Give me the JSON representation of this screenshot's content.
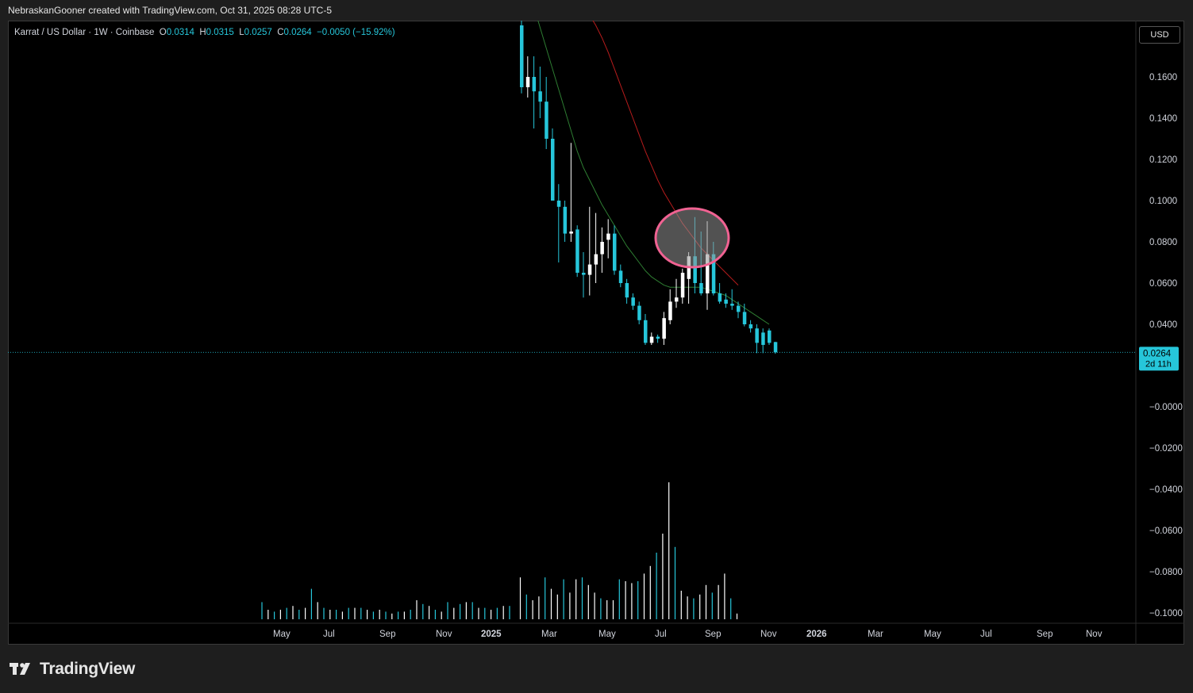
{
  "header": {
    "credit": "NebraskanGooner created with TradingView.com, Oct 31, 2025 08:28 UTC-5"
  },
  "legend": {
    "symbol": "Karrat / US Dollar · 1W · Coinbase",
    "open_label": "O",
    "open_value": "0.0314",
    "high_label": "H",
    "high_value": "0.0315",
    "low_label": "L",
    "low_value": "0.0257",
    "close_label": "C",
    "close_value": "0.0264",
    "change": "−0.0050 (−15.92%)"
  },
  "toolbar": {
    "currency": "USD"
  },
  "price_badge": {
    "value": "0.0264",
    "countdown": "2d 11h"
  },
  "footer": {
    "brand": "TradingView"
  },
  "colors": {
    "up": "#ffffff",
    "down": "#26c6da",
    "ma_fast": "#2e7d32",
    "ma_slow": "#b71c1c",
    "highlight": "#f06292",
    "axis_text": "#d1d4dc",
    "background": "#000000"
  },
  "icons": {
    "brand_logo": "tradingview-logo-icon"
  },
  "chart_data": {
    "type": "candlestick",
    "interval": "1W",
    "last_price": 0.0264,
    "y_ticks": [
      "0.1600",
      "0.1400",
      "0.1200",
      "0.1000",
      "0.0800",
      "0.0600",
      "0.0400",
      "−0.0000",
      "−0.0200",
      "−0.0400",
      "−0.0600",
      "−0.0800",
      "−0.1000"
    ],
    "x_ticks": [
      {
        "label": "May",
        "bold": false
      },
      {
        "label": "Jul",
        "bold": false
      },
      {
        "label": "Sep",
        "bold": false
      },
      {
        "label": "Nov",
        "bold": false
      },
      {
        "label": "2025",
        "bold": true
      },
      {
        "label": "Mar",
        "bold": false
      },
      {
        "label": "May",
        "bold": false
      },
      {
        "label": "Jul",
        "bold": false
      },
      {
        "label": "Sep",
        "bold": false
      },
      {
        "label": "Nov",
        "bold": false
      },
      {
        "label": "2026",
        "bold": true
      },
      {
        "label": "Mar",
        "bold": false
      },
      {
        "label": "May",
        "bold": false
      },
      {
        "label": "Jul",
        "bold": false
      },
      {
        "label": "Sep",
        "bold": false
      },
      {
        "label": "Nov",
        "bold": false
      }
    ],
    "candles": [
      {
        "o": 0.185,
        "h": 0.19,
        "l": 0.152,
        "c": 0.155
      },
      {
        "o": 0.155,
        "h": 0.17,
        "l": 0.15,
        "c": 0.16
      },
      {
        "o": 0.16,
        "h": 0.17,
        "l": 0.135,
        "c": 0.153
      },
      {
        "o": 0.153,
        "h": 0.165,
        "l": 0.14,
        "c": 0.148
      },
      {
        "o": 0.148,
        "h": 0.16,
        "l": 0.125,
        "c": 0.13
      },
      {
        "o": 0.13,
        "h": 0.135,
        "l": 0.1,
        "c": 0.1
      },
      {
        "o": 0.1,
        "h": 0.108,
        "l": 0.07,
        "c": 0.097
      },
      {
        "o": 0.097,
        "h": 0.1,
        "l": 0.08,
        "c": 0.084
      },
      {
        "o": 0.084,
        "h": 0.128,
        "l": 0.08,
        "c": 0.085
      },
      {
        "o": 0.086,
        "h": 0.088,
        "l": 0.063,
        "c": 0.065
      },
      {
        "o": 0.065,
        "h": 0.075,
        "l": 0.053,
        "c": 0.064
      },
      {
        "o": 0.064,
        "h": 0.097,
        "l": 0.054,
        "c": 0.069
      },
      {
        "o": 0.069,
        "h": 0.094,
        "l": 0.06,
        "c": 0.074
      },
      {
        "o": 0.074,
        "h": 0.087,
        "l": 0.065,
        "c": 0.08
      },
      {
        "o": 0.081,
        "h": 0.091,
        "l": 0.072,
        "c": 0.084
      },
      {
        "o": 0.084,
        "h": 0.088,
        "l": 0.064,
        "c": 0.066
      },
      {
        "o": 0.066,
        "h": 0.069,
        "l": 0.058,
        "c": 0.06
      },
      {
        "o": 0.06,
        "h": 0.062,
        "l": 0.05,
        "c": 0.053
      },
      {
        "o": 0.053,
        "h": 0.055,
        "l": 0.047,
        "c": 0.049
      },
      {
        "o": 0.049,
        "h": 0.051,
        "l": 0.04,
        "c": 0.042
      },
      {
        "o": 0.042,
        "h": 0.045,
        "l": 0.03,
        "c": 0.031
      },
      {
        "o": 0.031,
        "h": 0.036,
        "l": 0.03,
        "c": 0.034
      },
      {
        "o": 0.034,
        "h": 0.035,
        "l": 0.031,
        "c": 0.033
      },
      {
        "o": 0.033,
        "h": 0.046,
        "l": 0.03,
        "c": 0.043
      },
      {
        "o": 0.042,
        "h": 0.057,
        "l": 0.04,
        "c": 0.051
      },
      {
        "o": 0.051,
        "h": 0.062,
        "l": 0.048,
        "c": 0.053
      },
      {
        "o": 0.053,
        "h": 0.067,
        "l": 0.05,
        "c": 0.065
      },
      {
        "o": 0.062,
        "h": 0.075,
        "l": 0.05,
        "c": 0.073
      },
      {
        "o": 0.073,
        "h": 0.092,
        "l": 0.055,
        "c": 0.06
      },
      {
        "o": 0.06,
        "h": 0.085,
        "l": 0.054,
        "c": 0.055
      },
      {
        "o": 0.055,
        "h": 0.09,
        "l": 0.047,
        "c": 0.074
      },
      {
        "o": 0.074,
        "h": 0.08,
        "l": 0.054,
        "c": 0.055
      },
      {
        "o": 0.055,
        "h": 0.06,
        "l": 0.05,
        "c": 0.051
      },
      {
        "o": 0.052,
        "h": 0.055,
        "l": 0.048,
        "c": 0.05
      },
      {
        "o": 0.05,
        "h": 0.057,
        "l": 0.047,
        "c": 0.049
      },
      {
        "o": 0.049,
        "h": 0.051,
        "l": 0.043,
        "c": 0.046
      },
      {
        "o": 0.046,
        "h": 0.05,
        "l": 0.039,
        "c": 0.04
      },
      {
        "o": 0.04,
        "h": 0.042,
        "l": 0.036,
        "c": 0.038
      },
      {
        "o": 0.038,
        "h": 0.04,
        "l": 0.026,
        "c": 0.031
      },
      {
        "o": 0.036,
        "h": 0.038,
        "l": 0.026,
        "c": 0.03
      },
      {
        "o": 0.037,
        "h": 0.038,
        "l": 0.03,
        "c": 0.031
      },
      {
        "o": 0.0314,
        "h": 0.0315,
        "l": 0.0257,
        "c": 0.0264
      }
    ],
    "ma_fast": [
      0.205,
      0.194,
      0.184,
      0.174,
      0.164,
      0.154,
      0.144,
      0.134,
      0.124,
      0.116,
      0.11,
      0.104,
      0.098,
      0.093,
      0.088,
      0.083,
      0.078,
      0.074,
      0.07,
      0.066,
      0.063,
      0.061,
      0.059,
      0.058,
      0.058,
      0.058,
      0.058,
      0.058,
      0.058,
      0.057,
      0.056,
      0.055,
      0.054,
      0.052,
      0.05,
      0.048,
      0.046,
      0.044,
      0.042,
      0.04
    ],
    "ma_slow": [
      0.194,
      0.19,
      0.185,
      0.179,
      0.172,
      0.164,
      0.156,
      0.148,
      0.14,
      0.132,
      0.124,
      0.117,
      0.11,
      0.104,
      0.099,
      0.094,
      0.089,
      0.085,
      0.081,
      0.077,
      0.074,
      0.071,
      0.068,
      0.065,
      0.062,
      0.059
    ],
    "volume": {
      "pre_listing": [
        0.09,
        0.05,
        0.04,
        0.05,
        0.06,
        0.07,
        0.05,
        0.06,
        0.16,
        0.09,
        0.06,
        0.05,
        0.05,
        0.04,
        0.06,
        0.06,
        0.06,
        0.05,
        0.04,
        0.05,
        0.04,
        0.03,
        0.04,
        0.04,
        0.05,
        0.1,
        0.08,
        0.07,
        0.05,
        0.04,
        0.09,
        0.06,
        0.08,
        0.09,
        0.09,
        0.06,
        0.06,
        0.05,
        0.06,
        0.07,
        0.07
      ],
      "traded": [
        0.22,
        0.13,
        0.1,
        0.12,
        0.22,
        0.16,
        0.13,
        0.21,
        0.14,
        0.21,
        0.22,
        0.18,
        0.14,
        0.11,
        0.1,
        0.1,
        0.21,
        0.2,
        0.19,
        0.2,
        0.24,
        0.28,
        0.35,
        0.45,
        0.72,
        0.38,
        0.15,
        0.12,
        0.11,
        0.13,
        0.18,
        0.14,
        0.18,
        0.24,
        0.11,
        0.03
      ]
    }
  }
}
